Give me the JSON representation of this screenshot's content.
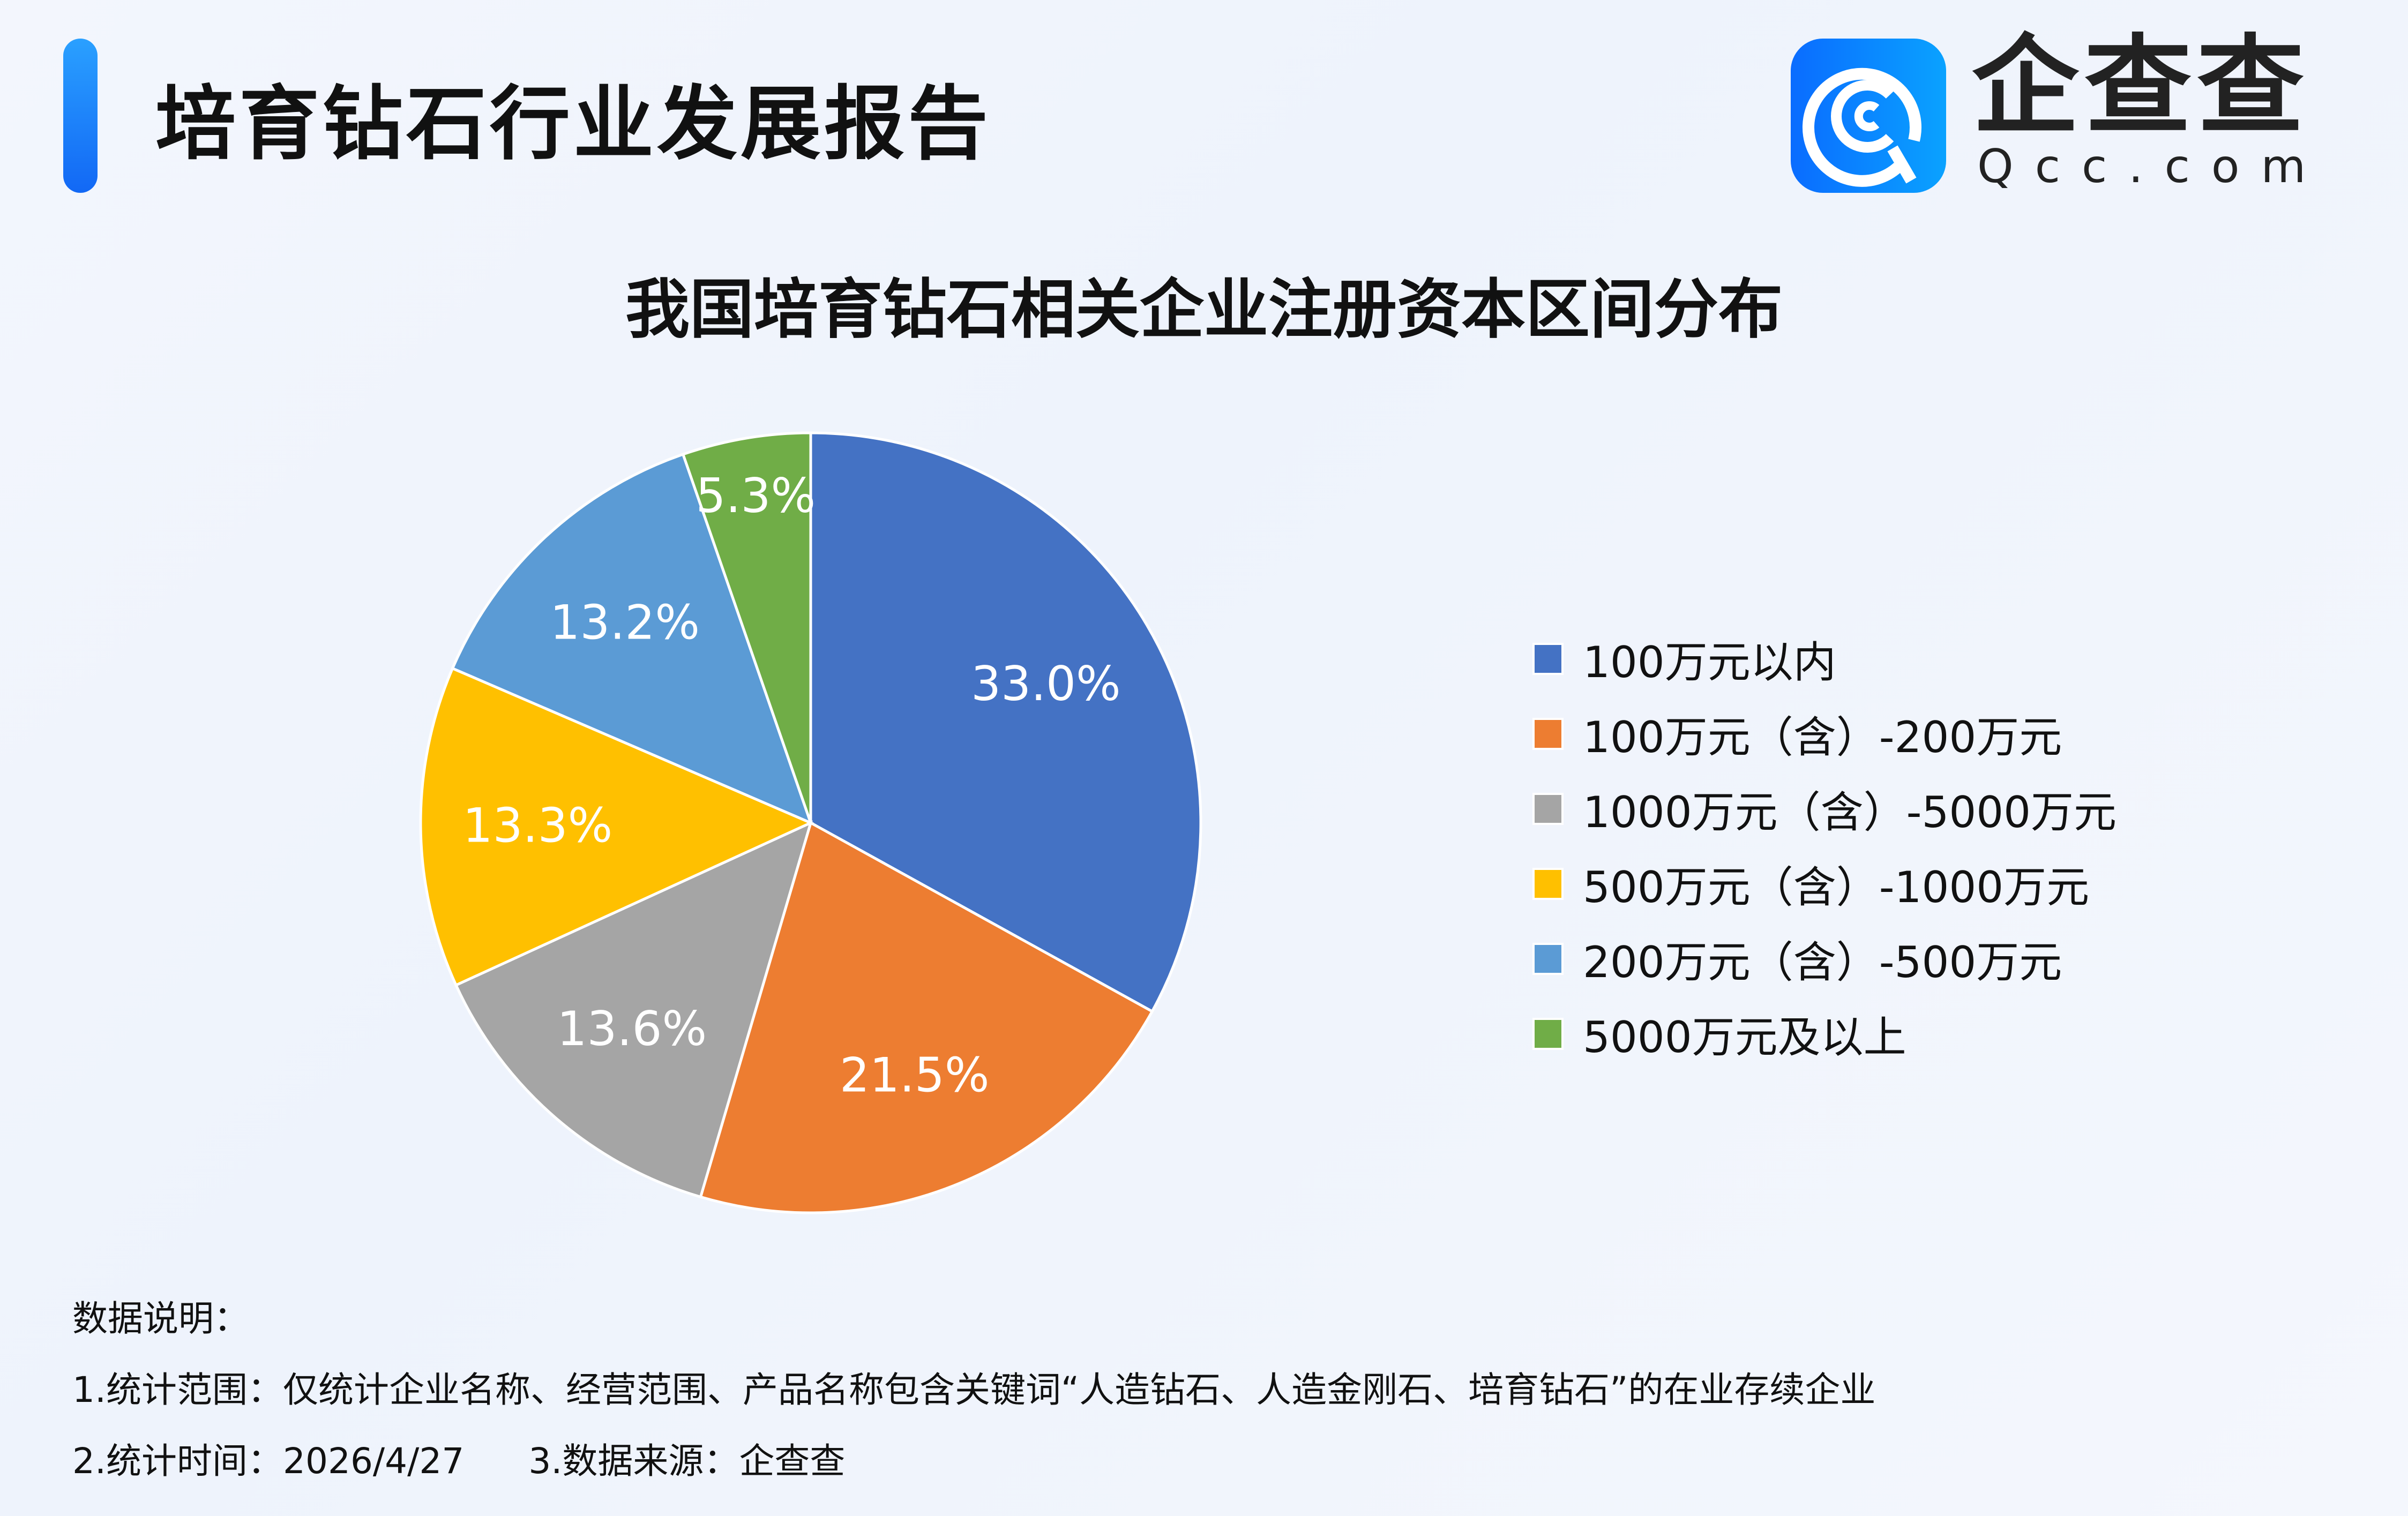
{
  "header": {
    "title": "培育钻石行业发展报告",
    "brand_name": "企查查",
    "brand_domain": "Qcc.com",
    "accent_color": "#1a7cf8"
  },
  "chart_data": {
    "type": "pie",
    "title": "我国培育钻石相关企业注册资本区间分布",
    "categories": [
      "100万元以内",
      "100万元（含）-200万元",
      "1000万元（含）-5000万元",
      "500万元（含）-1000万元",
      "200万元（含）-500万元",
      "5000万元及以上"
    ],
    "values": [
      33.0,
      21.5,
      13.6,
      13.3,
      13.2,
      5.3
    ],
    "labels": [
      "33.0%",
      "21.5%",
      "13.6%",
      "13.3%",
      "13.2%",
      "5.3%"
    ],
    "colors": [
      "#4472c4",
      "#ed7d31",
      "#a5a5a5",
      "#ffc000",
      "#5b9bd5",
      "#70ad47"
    ],
    "start": "12 o'clock, clockwise",
    "legend_position": "right"
  },
  "notes": {
    "heading": "数据说明：",
    "line1": "1.统计范围：仅统计企业名称、经营范围、产品名称包含关键词“人造钻石、人造金刚石、培育钻石”的在业存续企业",
    "line2a": "2.统计时间：2026/4/27",
    "line2b": "3.数据来源：企查查"
  }
}
